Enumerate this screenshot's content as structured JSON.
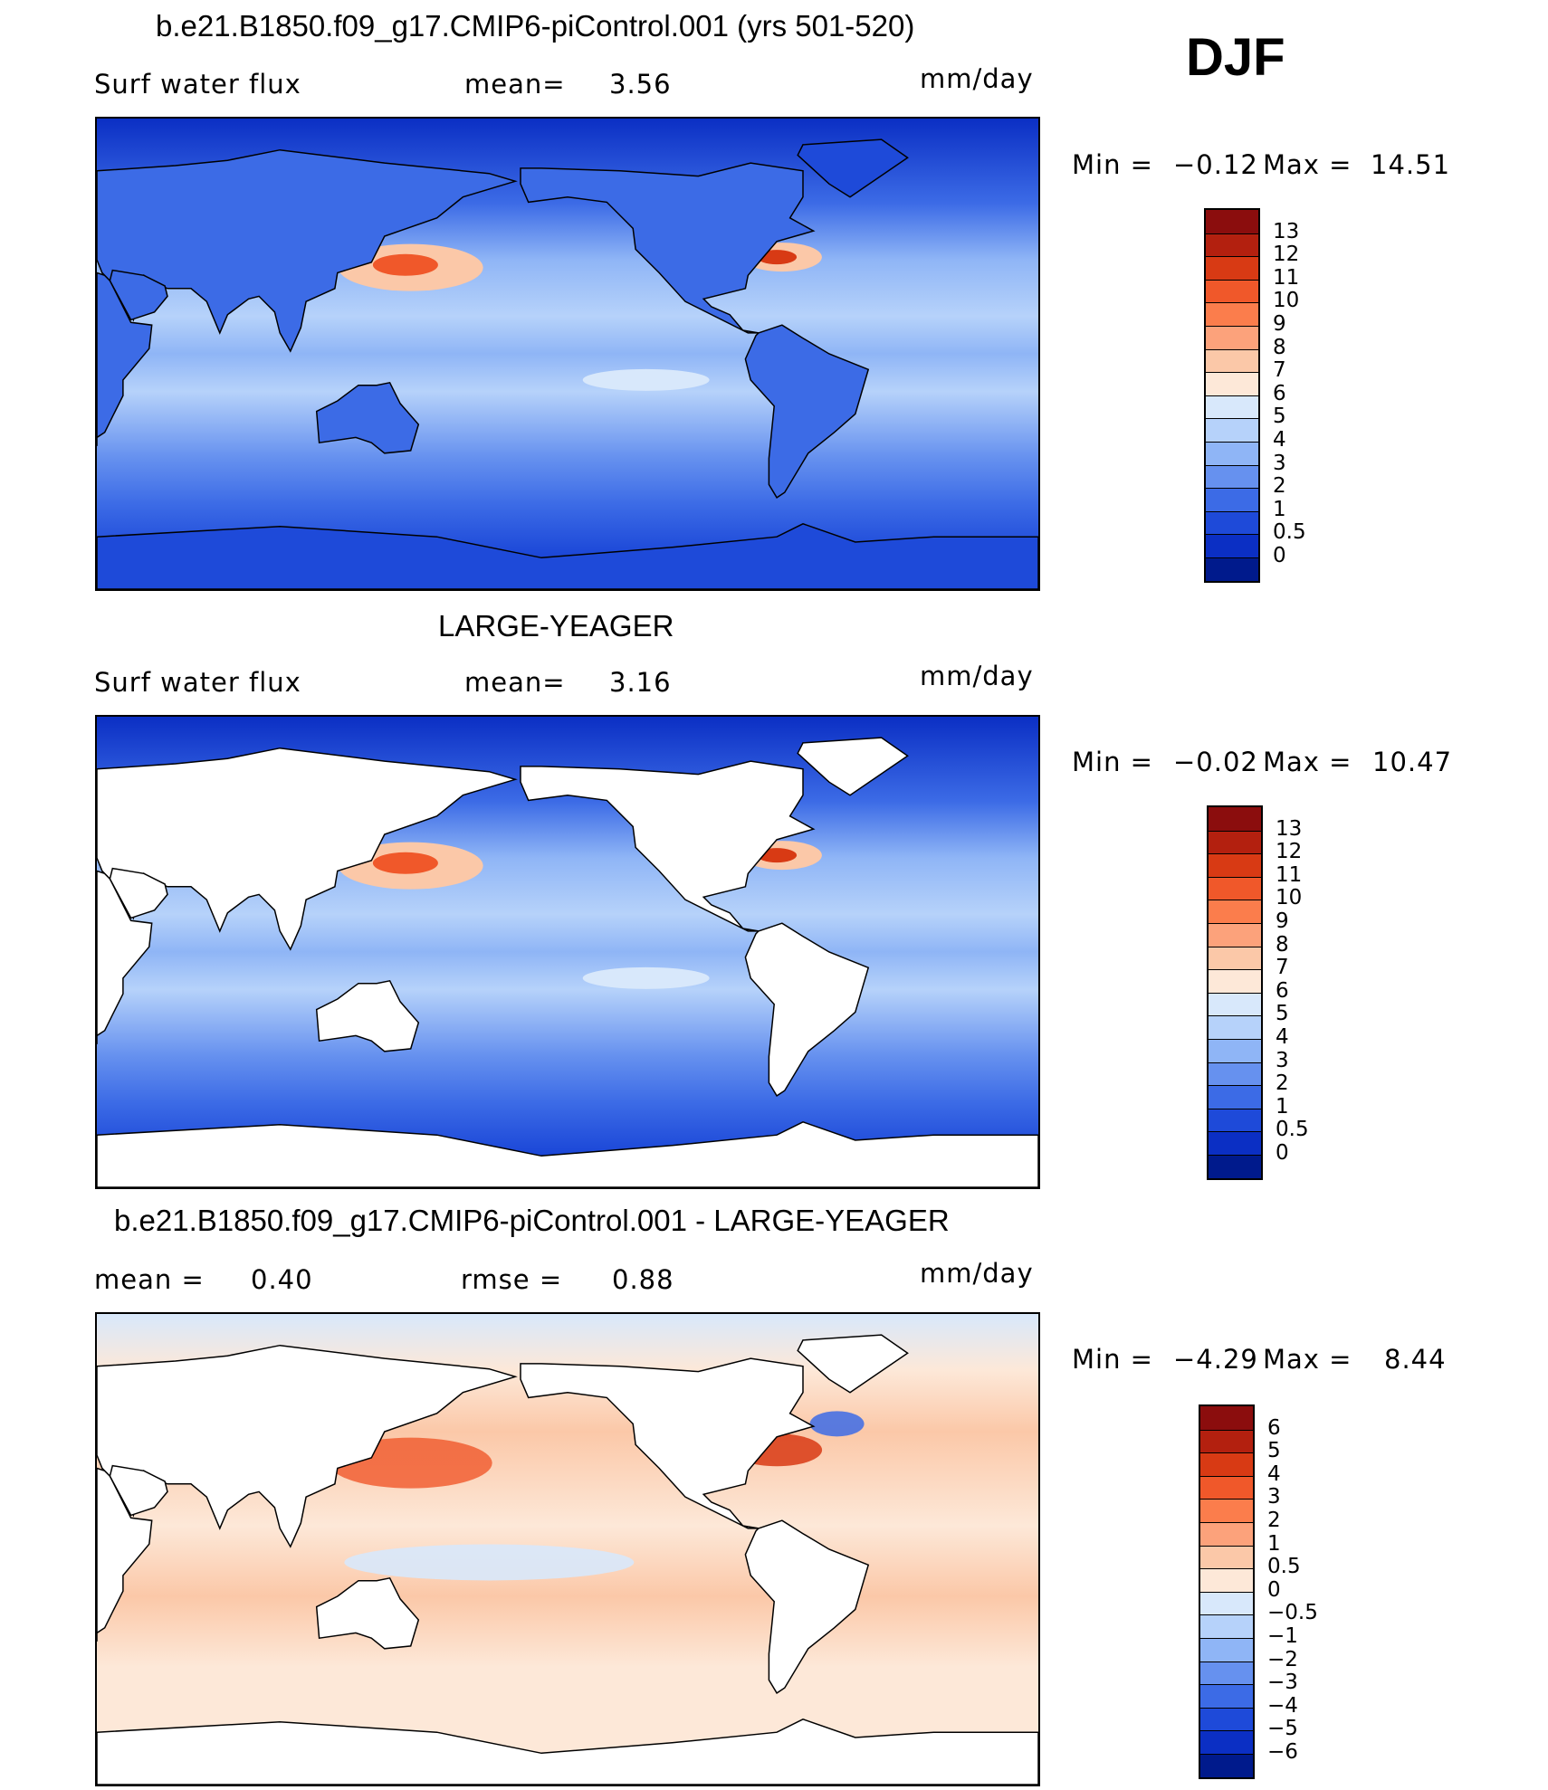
{
  "season": "DJF",
  "panels": [
    {
      "title": "b.e21.B1850.f09_g17.CMIP6-piControl.001 (yrs 501-520)",
      "left_label": "Surf water flux",
      "mid_label": "mean=",
      "mid_value": "3.56",
      "units": "mm/day",
      "min_label": "Min =",
      "min_value": "−0.12",
      "max_label": "Max =",
      "max_value": "14.51",
      "colorbar_labels": [
        "13",
        "12",
        "11",
        "10",
        "9",
        "8",
        "7",
        "6",
        "5",
        "4",
        "3",
        "2",
        "1",
        "0.5",
        "0"
      ],
      "colorbar_colors": [
        "#8b0d0d",
        "#b3200f",
        "#d83a14",
        "#f0582a",
        "#fb7d4c",
        "#fca27b",
        "#fbc8a8",
        "#fde8d8",
        "#d8e8fb",
        "#b6d2fa",
        "#8fb5f6",
        "#6691ef",
        "#3c6be6",
        "#1e4ad9",
        "#0b2fc4",
        "#001a8c"
      ],
      "colorscale": "absolute"
    },
    {
      "title": "LARGE-YEAGER",
      "left_label": "Surf water flux",
      "mid_label": "mean=",
      "mid_value": "3.16",
      "units": "mm/day",
      "min_label": "Min =",
      "min_value": "−0.02",
      "max_label": "Max =",
      "max_value": "10.47",
      "colorbar_labels": [
        "13",
        "12",
        "11",
        "10",
        "9",
        "8",
        "7",
        "6",
        "5",
        "4",
        "3",
        "2",
        "1",
        "0.5",
        "0"
      ],
      "colorbar_colors": [
        "#8b0d0d",
        "#b3200f",
        "#d83a14",
        "#f0582a",
        "#fb7d4c",
        "#fca27b",
        "#fbc8a8",
        "#fde8d8",
        "#d8e8fb",
        "#b6d2fa",
        "#8fb5f6",
        "#6691ef",
        "#3c6be6",
        "#1e4ad9",
        "#0b2fc4",
        "#001a8c"
      ],
      "colorscale": "absolute"
    },
    {
      "title": "b.e21.B1850.f09_g17.CMIP6-piControl.001 - LARGE-YEAGER",
      "left_label": "mean =",
      "left_value": "0.40",
      "mid_label": "rmse =",
      "mid_value": "0.88",
      "units": "mm/day",
      "min_label": "Min =",
      "min_value": "−4.29",
      "max_label": "Max =",
      "max_value": "8.44",
      "colorbar_labels": [
        "6",
        "5",
        "4",
        "3",
        "2",
        "1",
        "0.5",
        "0",
        "−0.5",
        "−1",
        "−2",
        "−3",
        "−4",
        "−5",
        "−6"
      ],
      "colorbar_colors": [
        "#8b0d0d",
        "#b3200f",
        "#d83a14",
        "#f0582a",
        "#fb7d4c",
        "#fca27b",
        "#fbc8a8",
        "#fde8d8",
        "#d8e8fb",
        "#b6d2fa",
        "#8fb5f6",
        "#6691ef",
        "#3c6be6",
        "#1e4ad9",
        "#0b2fc4",
        "#001a8c"
      ],
      "colorscale": "difference"
    }
  ]
}
